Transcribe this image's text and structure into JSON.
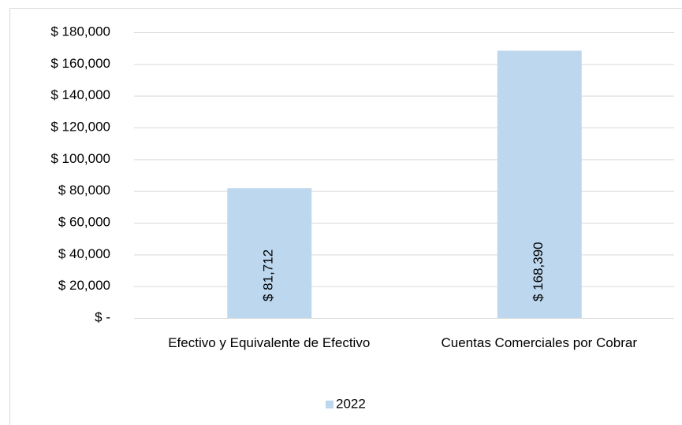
{
  "chart_data": {
    "type": "bar",
    "categories": [
      "Efectivo y Equivalente de Efectivo",
      "Cuentas Comerciales por Cobrar"
    ],
    "series": [
      {
        "name": "2022",
        "color": "#bdd7ee",
        "values": [
          81712,
          168390
        ],
        "value_labels": [
          "$ 81,712",
          "$ 168,390"
        ]
      }
    ],
    "ylim": [
      0,
      180000
    ],
    "yticks": [
      {
        "value": 0,
        "label": "$ -"
      },
      {
        "value": 20000,
        "label": "$ 20,000"
      },
      {
        "value": 40000,
        "label": "$ 40,000"
      },
      {
        "value": 60000,
        "label": "$ 60,000"
      },
      {
        "value": 80000,
        "label": "$ 80,000"
      },
      {
        "value": 100000,
        "label": "$ 100,000"
      },
      {
        "value": 120000,
        "label": "$ 120,000"
      },
      {
        "value": 140000,
        "label": "$ 140,000"
      },
      {
        "value": 160000,
        "label": "$ 160,000"
      },
      {
        "value": 180000,
        "label": "$ 180,000"
      }
    ],
    "grid": true,
    "legend": "bottom"
  }
}
